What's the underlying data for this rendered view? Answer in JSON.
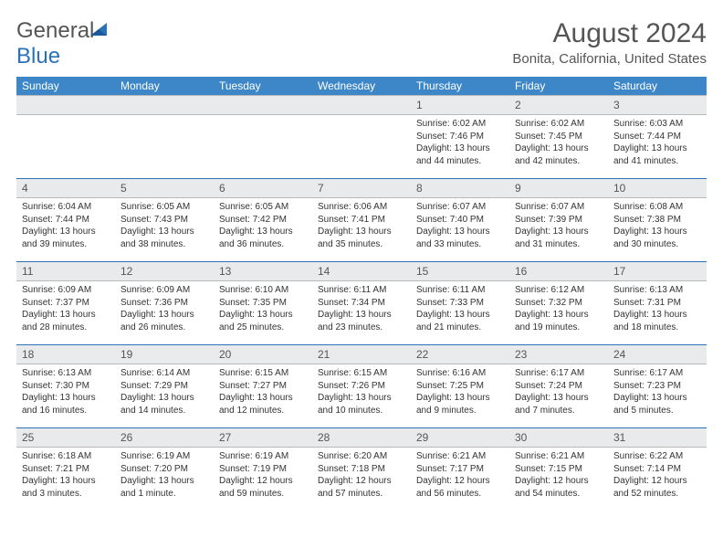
{
  "logo": {
    "part1": "General",
    "part2": "Blue"
  },
  "title": "August 2024",
  "location": "Bonita, California, United States",
  "dayHeaders": [
    "Sunday",
    "Monday",
    "Tuesday",
    "Wednesday",
    "Thursday",
    "Friday",
    "Saturday"
  ],
  "labels": {
    "sunrise": "Sunrise:",
    "sunset": "Sunset:",
    "daylight": "Daylight:"
  },
  "colors": {
    "headerBar": "#3d87c9",
    "dateRow": "#e9eaeb",
    "weekDivider": "#2a71b8",
    "textMuted": "#555",
    "logoAccent": "#2a71b8"
  },
  "weeks": [
    [
      null,
      null,
      null,
      null,
      {
        "d": "1",
        "sr": "6:02 AM",
        "ss": "7:46 PM",
        "dl": "13 hours and 44 minutes."
      },
      {
        "d": "2",
        "sr": "6:02 AM",
        "ss": "7:45 PM",
        "dl": "13 hours and 42 minutes."
      },
      {
        "d": "3",
        "sr": "6:03 AM",
        "ss": "7:44 PM",
        "dl": "13 hours and 41 minutes."
      }
    ],
    [
      {
        "d": "4",
        "sr": "6:04 AM",
        "ss": "7:44 PM",
        "dl": "13 hours and 39 minutes."
      },
      {
        "d": "5",
        "sr": "6:05 AM",
        "ss": "7:43 PM",
        "dl": "13 hours and 38 minutes."
      },
      {
        "d": "6",
        "sr": "6:05 AM",
        "ss": "7:42 PM",
        "dl": "13 hours and 36 minutes."
      },
      {
        "d": "7",
        "sr": "6:06 AM",
        "ss": "7:41 PM",
        "dl": "13 hours and 35 minutes."
      },
      {
        "d": "8",
        "sr": "6:07 AM",
        "ss": "7:40 PM",
        "dl": "13 hours and 33 minutes."
      },
      {
        "d": "9",
        "sr": "6:07 AM",
        "ss": "7:39 PM",
        "dl": "13 hours and 31 minutes."
      },
      {
        "d": "10",
        "sr": "6:08 AM",
        "ss": "7:38 PM",
        "dl": "13 hours and 30 minutes."
      }
    ],
    [
      {
        "d": "11",
        "sr": "6:09 AM",
        "ss": "7:37 PM",
        "dl": "13 hours and 28 minutes."
      },
      {
        "d": "12",
        "sr": "6:09 AM",
        "ss": "7:36 PM",
        "dl": "13 hours and 26 minutes."
      },
      {
        "d": "13",
        "sr": "6:10 AM",
        "ss": "7:35 PM",
        "dl": "13 hours and 25 minutes."
      },
      {
        "d": "14",
        "sr": "6:11 AM",
        "ss": "7:34 PM",
        "dl": "13 hours and 23 minutes."
      },
      {
        "d": "15",
        "sr": "6:11 AM",
        "ss": "7:33 PM",
        "dl": "13 hours and 21 minutes."
      },
      {
        "d": "16",
        "sr": "6:12 AM",
        "ss": "7:32 PM",
        "dl": "13 hours and 19 minutes."
      },
      {
        "d": "17",
        "sr": "6:13 AM",
        "ss": "7:31 PM",
        "dl": "13 hours and 18 minutes."
      }
    ],
    [
      {
        "d": "18",
        "sr": "6:13 AM",
        "ss": "7:30 PM",
        "dl": "13 hours and 16 minutes."
      },
      {
        "d": "19",
        "sr": "6:14 AM",
        "ss": "7:29 PM",
        "dl": "13 hours and 14 minutes."
      },
      {
        "d": "20",
        "sr": "6:15 AM",
        "ss": "7:27 PM",
        "dl": "13 hours and 12 minutes."
      },
      {
        "d": "21",
        "sr": "6:15 AM",
        "ss": "7:26 PM",
        "dl": "13 hours and 10 minutes."
      },
      {
        "d": "22",
        "sr": "6:16 AM",
        "ss": "7:25 PM",
        "dl": "13 hours and 9 minutes."
      },
      {
        "d": "23",
        "sr": "6:17 AM",
        "ss": "7:24 PM",
        "dl": "13 hours and 7 minutes."
      },
      {
        "d": "24",
        "sr": "6:17 AM",
        "ss": "7:23 PM",
        "dl": "13 hours and 5 minutes."
      }
    ],
    [
      {
        "d": "25",
        "sr": "6:18 AM",
        "ss": "7:21 PM",
        "dl": "13 hours and 3 minutes."
      },
      {
        "d": "26",
        "sr": "6:19 AM",
        "ss": "7:20 PM",
        "dl": "13 hours and 1 minute."
      },
      {
        "d": "27",
        "sr": "6:19 AM",
        "ss": "7:19 PM",
        "dl": "12 hours and 59 minutes."
      },
      {
        "d": "28",
        "sr": "6:20 AM",
        "ss": "7:18 PM",
        "dl": "12 hours and 57 minutes."
      },
      {
        "d": "29",
        "sr": "6:21 AM",
        "ss": "7:17 PM",
        "dl": "12 hours and 56 minutes."
      },
      {
        "d": "30",
        "sr": "6:21 AM",
        "ss": "7:15 PM",
        "dl": "12 hours and 54 minutes."
      },
      {
        "d": "31",
        "sr": "6:22 AM",
        "ss": "7:14 PM",
        "dl": "12 hours and 52 minutes."
      }
    ]
  ]
}
